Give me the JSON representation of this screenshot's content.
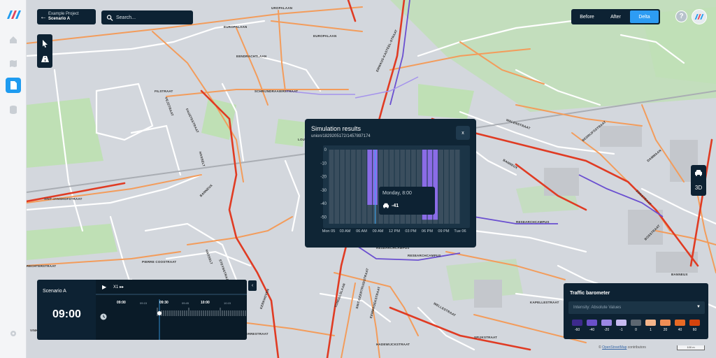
{
  "project": {
    "name": "Example Project",
    "scenario": "Scenario A"
  },
  "search": {
    "placeholder": "Search..."
  },
  "view_toggle": {
    "options": [
      "Before",
      "After",
      "Delta"
    ],
    "selected": "Delta"
  },
  "right_controls": {
    "mode_3d": "3D"
  },
  "streets": [
    "UROPALAAN",
    "EUROPALAAN",
    "EUROPALAAN",
    "EENDRACHTLAAN",
    "EMMAUS-KASTEEL-STRAAT",
    "FILSTRAAT",
    "SCHRIJNDRAAIERSTRAAT",
    "PEJSTRAAT",
    "FAUSTESTRAAT",
    "HASSELT",
    "SINT-JANSHOFSTRAAT",
    "BANNEUX",
    "PIERRE COOSTRAAT",
    "HASSELT",
    "STEYNSTRAAT",
    "RECHTERSTRAAT",
    "WALENSTRAAT",
    "BEDRIJFSSTRAAT",
    "BANNEUX",
    "RESEARCHCAMPUS",
    "RESEARCHCAMPUS",
    "RESEARCHCAMPUS",
    "LOUIS",
    "DAMMAAN",
    "KERKHOVEN",
    "BANNEUX",
    "ZONSTRAAT",
    "HADEWIJCKSTRAAT",
    "TONGELSLAAN",
    "SINT-GEERTRUIDSTRAAT",
    "EEMBROEKSTRAAT",
    "WELLESTRAAT",
    "KAPELLESTRAAT",
    "SPIJKSTRAAT",
    "BOSSTRAAT",
    "NANTERRESTRAAT",
    "VINKSTRAAT"
  ],
  "simulation": {
    "title": "Simulation results",
    "id": "union/1829205172/1457897174",
    "close": "x",
    "tooltip": {
      "label": "Monday, 8:00",
      "value": "-41"
    }
  },
  "chart_data": {
    "type": "bar",
    "title": "",
    "xlabel": "",
    "ylabel": "",
    "ylim": [
      -55,
      0
    ],
    "y_ticks": [
      0,
      -10,
      -20,
      -30,
      -40,
      -50
    ],
    "x_tick_labels": [
      "Mon 05",
      "03 AM",
      "06 AM",
      "09 AM",
      "12 PM",
      "03 PM",
      "06 PM",
      "09 PM",
      "Tue 06"
    ],
    "hours": [
      0,
      1,
      2,
      3,
      4,
      5,
      6,
      7,
      8,
      9,
      10,
      11,
      12,
      13,
      14,
      15,
      16,
      17,
      18,
      19,
      20,
      21,
      22,
      23
    ],
    "values": [
      0,
      0,
      0,
      0,
      0,
      0,
      0,
      -41,
      -41,
      0,
      0,
      0,
      0,
      0,
      0,
      0,
      0,
      -52,
      -52,
      -52,
      0,
      0,
      0,
      0
    ],
    "highlight_hour": 8,
    "highlight_color": "#8a6ce6",
    "base_color": "#3a4e5e"
  },
  "player": {
    "scenario": "Scenario A",
    "time": "09:00",
    "speed": "X1 ▸▸",
    "timeline_labels": [
      "09:00",
      "09:15",
      "09:30",
      "09:45",
      "10:00",
      "10:15"
    ]
  },
  "barometer": {
    "title": "Traffic barometer",
    "intensity": "Intensity: Absolute Values",
    "scale": [
      {
        "label": "-60",
        "color": "#3d2a8c"
      },
      {
        "label": "-40",
        "color": "#6a50c8"
      },
      {
        "label": "-20",
        "color": "#9b87e3"
      },
      {
        "label": "-1",
        "color": "#c6baf0"
      },
      {
        "label": "0",
        "color": "#5c6670"
      },
      {
        "label": "1",
        "color": "#f3b48a"
      },
      {
        "label": "20",
        "color": "#ee8d55"
      },
      {
        "label": "40",
        "color": "#e86a25"
      },
      {
        "label": "60",
        "color": "#d4430d"
      }
    ]
  },
  "attribution": {
    "prefix": "©",
    "link": "OpenStreetMap",
    "suffix": "contributors",
    "scale": "100 m"
  }
}
